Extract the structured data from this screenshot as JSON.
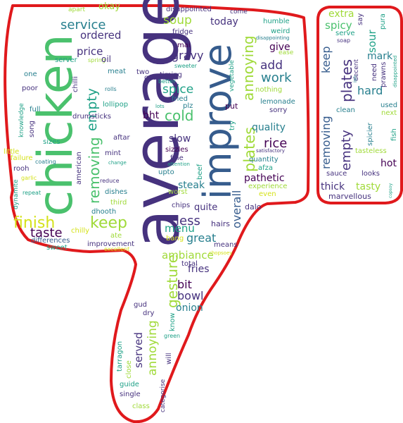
{
  "image": {
    "subject": "word cloud shaped as a thumbs-down hand",
    "outline_color": "#e0191c",
    "background": "#ffffff"
  },
  "palette": {
    "dark_purple": "#440154",
    "indigo": "#46327e",
    "blue": "#365c8d",
    "teal_blue": "#277f8e",
    "teal": "#1fa187",
    "green": "#4ac16d",
    "light_green": "#a0da39",
    "yellow": "#d5e21a"
  },
  "words": [
    {
      "text": "average",
      "c": "indigo"
    },
    {
      "text": "chicken",
      "c": "green"
    },
    {
      "text": "improve",
      "c": "blue"
    },
    {
      "text": "finish",
      "c": "yellow"
    },
    {
      "text": "keep",
      "c": "light_green"
    },
    {
      "text": "removing",
      "c": "green"
    },
    {
      "text": "empty",
      "c": "teal"
    },
    {
      "text": "plates",
      "c": "light_green"
    },
    {
      "text": "annoying",
      "c": "light_green"
    },
    {
      "text": "gesture",
      "c": "light_green"
    },
    {
      "text": "annoying",
      "c": "light_green"
    },
    {
      "text": "service",
      "c": "teal_blue"
    },
    {
      "text": "ordered",
      "c": "indigo"
    },
    {
      "text": "price",
      "c": "indigo"
    },
    {
      "text": "soup",
      "c": "light_green"
    },
    {
      "text": "today",
      "c": "indigo"
    },
    {
      "text": "gravy",
      "c": "indigo"
    },
    {
      "text": "spice",
      "c": "teal"
    },
    {
      "text": "cold",
      "c": "green"
    },
    {
      "text": "bht",
      "c": "dark_purple"
    },
    {
      "text": "add",
      "c": "indigo"
    },
    {
      "text": "work",
      "c": "teal_blue"
    },
    {
      "text": "give",
      "c": "dark_purple"
    },
    {
      "text": "quality",
      "c": "teal_blue"
    },
    {
      "text": "rice",
      "c": "dark_purple"
    },
    {
      "text": "pathetic",
      "c": "dark_purple"
    },
    {
      "text": "slow",
      "c": "indigo"
    },
    {
      "text": "steak",
      "c": "teal_blue"
    },
    {
      "text": "less",
      "c": "indigo"
    },
    {
      "text": "taste",
      "c": "dark_purple"
    },
    {
      "text": "great",
      "c": "teal_blue"
    },
    {
      "text": "menu",
      "c": "teal"
    },
    {
      "text": "quite",
      "c": "indigo"
    },
    {
      "text": "overall",
      "c": "blue"
    },
    {
      "text": "ambiance",
      "c": "light_green"
    },
    {
      "text": "fries",
      "c": "indigo"
    },
    {
      "text": "bit",
      "c": "dark_purple"
    },
    {
      "text": "bowl",
      "c": "indigo"
    },
    {
      "text": "onion",
      "c": "teal_blue"
    },
    {
      "text": "served",
      "c": "indigo"
    },
    {
      "text": "keep",
      "c": "blue"
    },
    {
      "text": "removing",
      "c": "blue"
    },
    {
      "text": "empty",
      "c": "indigo"
    },
    {
      "text": "plates",
      "c": "indigo"
    },
    {
      "text": "sour",
      "c": "teal"
    },
    {
      "text": "extra",
      "c": "light_green"
    },
    {
      "text": "spicy",
      "c": "green"
    },
    {
      "text": "mark",
      "c": "teal_blue"
    },
    {
      "text": "hard",
      "c": "teal_blue"
    },
    {
      "text": "hot",
      "c": "dark_purple"
    },
    {
      "text": "thick",
      "c": "indigo"
    },
    {
      "text": "tasty",
      "c": "light_green"
    },
    {
      "text": "marvellous",
      "c": "indigo"
    },
    {
      "text": "okay",
      "c": "light_green"
    },
    {
      "text": "disappointed",
      "c": "indigo"
    },
    {
      "text": "come",
      "c": "indigo"
    },
    {
      "text": "humble",
      "c": "teal"
    },
    {
      "text": "weird",
      "c": "teal"
    },
    {
      "text": "disappointing",
      "c": "teal_blue"
    },
    {
      "text": "fridge",
      "c": "indigo"
    },
    {
      "text": "mai",
      "c": "dark_purple"
    },
    {
      "text": "sweeter",
      "c": "teal"
    },
    {
      "text": "ease",
      "c": "light_green"
    },
    {
      "text": "timing",
      "c": "indigo"
    },
    {
      "text": "better",
      "c": "teal"
    },
    {
      "text": "nothing",
      "c": "light_green"
    },
    {
      "text": "lemonade",
      "c": "teal_blue"
    },
    {
      "text": "sorry",
      "c": "indigo"
    },
    {
      "text": "fried",
      "c": "teal_blue"
    },
    {
      "text": "plz",
      "c": "teal_blue"
    },
    {
      "text": "put",
      "c": "dark_purple"
    },
    {
      "text": "try",
      "c": "teal"
    },
    {
      "text": "vegetable",
      "c": "teal"
    },
    {
      "text": "lots",
      "c": "teal"
    },
    {
      "text": "sizzles",
      "c": "dark_purple"
    },
    {
      "text": "fine",
      "c": "indigo"
    },
    {
      "text": "satisfactory",
      "c": "indigo"
    },
    {
      "text": "quantity",
      "c": "teal_blue"
    },
    {
      "text": "afza",
      "c": "teal"
    },
    {
      "text": "upto",
      "c": "teal_blue"
    },
    {
      "text": "worst",
      "c": "light_green"
    },
    {
      "text": "experience",
      "c": "light_green"
    },
    {
      "text": "even",
      "c": "yellow"
    },
    {
      "text": "beef",
      "c": "teal"
    },
    {
      "text": "chips",
      "c": "indigo"
    },
    {
      "text": "dalo",
      "c": "indigo"
    },
    {
      "text": "hairs",
      "c": "indigo"
    },
    {
      "text": "bang",
      "c": "yellow"
    },
    {
      "text": "means",
      "c": "indigo"
    },
    {
      "text": "chopsoey",
      "c": "yellow"
    },
    {
      "text": "total",
      "c": "indigo"
    },
    {
      "text": "attention",
      "c": "teal"
    },
    {
      "text": "one",
      "c": "teal_blue"
    },
    {
      "text": "poor",
      "c": "indigo"
    },
    {
      "text": "full",
      "c": "teal_blue"
    },
    {
      "text": "knowledge",
      "c": "teal"
    },
    {
      "text": "little",
      "c": "yellow"
    },
    {
      "text": "failure",
      "c": "yellow"
    },
    {
      "text": "rooh",
      "c": "indigo"
    },
    {
      "text": "dynamite",
      "c": "teal"
    },
    {
      "text": "garlic",
      "c": "yellow"
    },
    {
      "text": "repeat",
      "c": "teal"
    },
    {
      "text": "song",
      "c": "indigo"
    },
    {
      "text": "sizes",
      "c": "teal"
    },
    {
      "text": "coating",
      "c": "teal_blue"
    },
    {
      "text": "chilli",
      "c": "indigo"
    },
    {
      "text": "drumsticks",
      "c": "indigo"
    },
    {
      "text": "lollipop",
      "c": "teal"
    },
    {
      "text": "rolls",
      "c": "teal_blue"
    },
    {
      "text": "aftar",
      "c": "indigo"
    },
    {
      "text": "mint",
      "c": "indigo"
    },
    {
      "text": "american",
      "c": "indigo"
    },
    {
      "text": "reduce",
      "c": "indigo"
    },
    {
      "text": "dishes",
      "c": "teal_blue"
    },
    {
      "text": "third",
      "c": "light_green"
    },
    {
      "text": "dhooth",
      "c": "teal_blue"
    },
    {
      "text": "chilly",
      "c": "yellow"
    },
    {
      "text": "ate",
      "c": "light_green"
    },
    {
      "text": "differences",
      "c": "blue"
    },
    {
      "text": "sweet",
      "c": "teal"
    },
    {
      "text": "improvement",
      "c": "indigo"
    },
    {
      "text": "excellent",
      "c": "yellow"
    },
    {
      "text": "change",
      "c": "teal"
    },
    {
      "text": "apart",
      "c": "light_green"
    },
    {
      "text": "server",
      "c": "teal"
    },
    {
      "text": "spring",
      "c": "light_green"
    },
    {
      "text": "meat",
      "c": "teal_blue"
    },
    {
      "text": "two",
      "c": "indigo"
    },
    {
      "text": "qua",
      "c": "indigo"
    },
    {
      "text": "oil",
      "c": "indigo"
    },
    {
      "text": "gud",
      "c": "indigo"
    },
    {
      "text": "dry",
      "c": "indigo"
    },
    {
      "text": "know",
      "c": "teal"
    },
    {
      "text": "green",
      "c": "teal"
    },
    {
      "text": "tarragon",
      "c": "teal"
    },
    {
      "text": "close",
      "c": "light_green"
    },
    {
      "text": "will",
      "c": "indigo"
    },
    {
      "text": "guide",
      "c": "teal"
    },
    {
      "text": "single",
      "c": "indigo"
    },
    {
      "text": "class",
      "c": "light_green"
    },
    {
      "text": "categorise",
      "c": "indigo"
    },
    {
      "text": "say",
      "c": "indigo"
    },
    {
      "text": "pura",
      "c": "teal"
    },
    {
      "text": "serve",
      "c": "teal"
    },
    {
      "text": "soap",
      "c": "indigo"
    },
    {
      "text": "decent",
      "c": "indigo"
    },
    {
      "text": "need",
      "c": "indigo"
    },
    {
      "text": "prawns",
      "c": "indigo"
    },
    {
      "text": "disappointed",
      "c": "teal"
    },
    {
      "text": "clean",
      "c": "teal_blue"
    },
    {
      "text": "used",
      "c": "teal_blue"
    },
    {
      "text": "next",
      "c": "light_green"
    },
    {
      "text": "spicier",
      "c": "teal_blue"
    },
    {
      "text": "fish",
      "c": "teal"
    },
    {
      "text": "tasteless",
      "c": "light_green"
    },
    {
      "text": "sauce",
      "c": "indigo"
    },
    {
      "text": "looks",
      "c": "indigo"
    },
    {
      "text": "copsoy",
      "c": "teal"
    },
    {
      "text": "isn",
      "c": "teal_blue"
    }
  ]
}
